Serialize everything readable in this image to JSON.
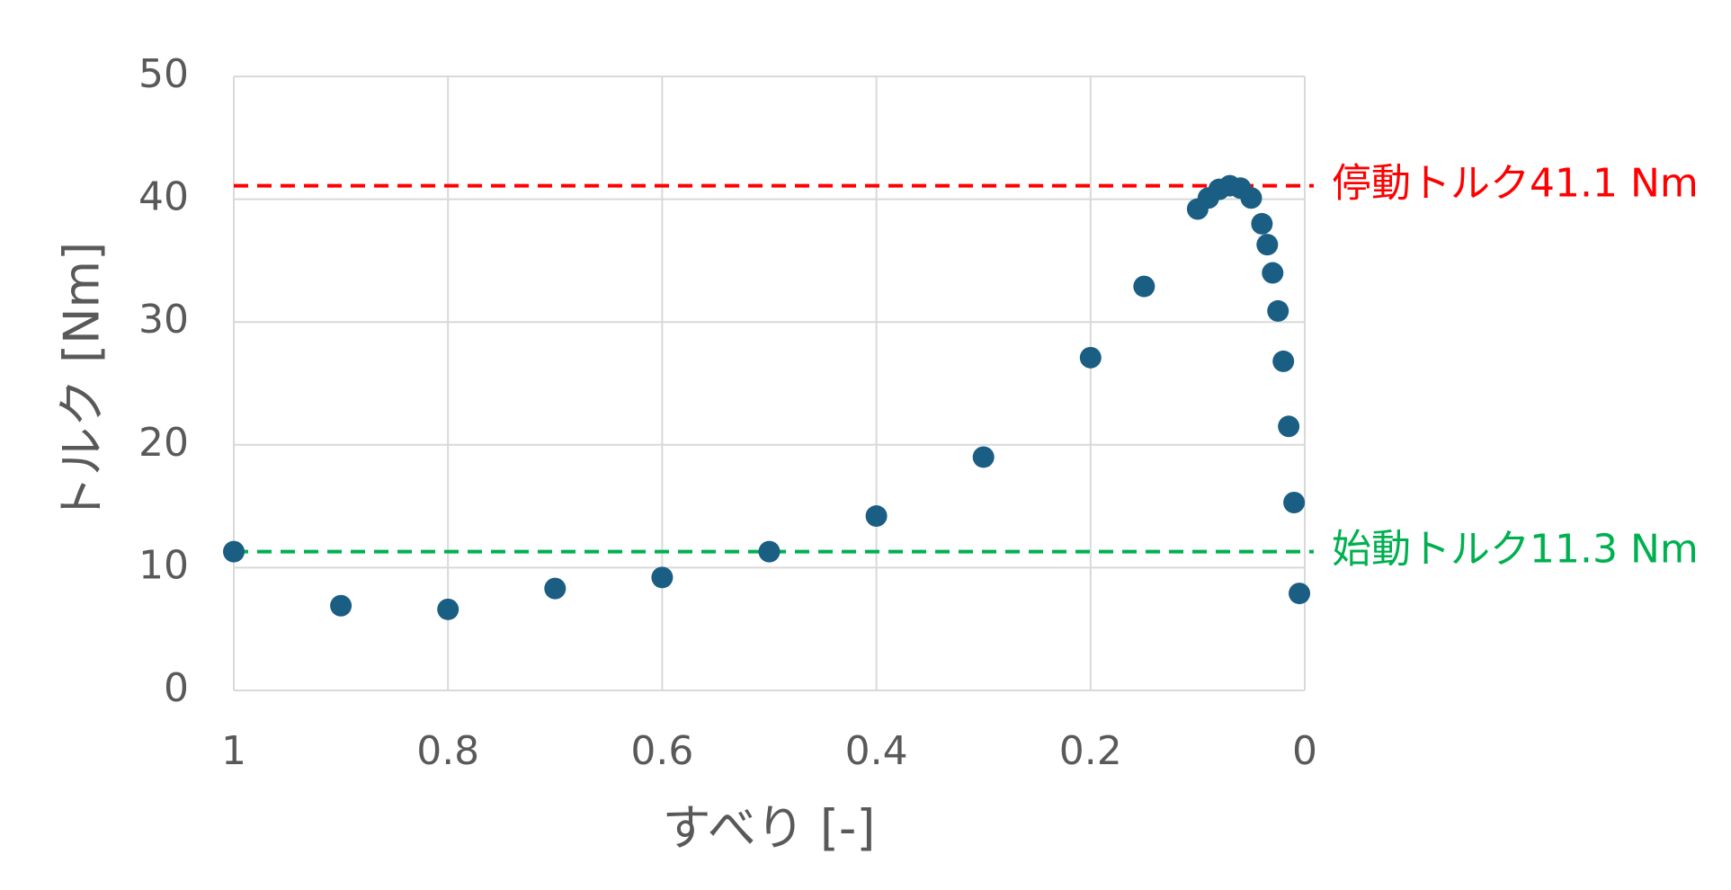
{
  "chart_data": {
    "type": "scatter",
    "x_label": "すべり [-]",
    "y_label": "トルク [Nm]",
    "x": [
      1,
      0.9,
      0.8,
      0.7,
      0.6,
      0.5,
      0.4,
      0.3,
      0.2,
      0.15,
      0.1,
      0.09,
      0.08,
      0.07,
      0.06,
      0.05,
      0.04,
      0.035,
      0.03,
      0.025,
      0.02,
      0.015,
      0.01,
      0.005
    ],
    "values": [
      11.3,
      6.9,
      6.6,
      8.3,
      9.2,
      11.3,
      14.2,
      19.0,
      27.1,
      32.9,
      39.2,
      40.1,
      40.8,
      41.1,
      40.9,
      40.1,
      38.0,
      36.3,
      34.0,
      30.9,
      26.8,
      21.5,
      15.3,
      7.9
    ],
    "color": "#1b5e84",
    "xlim": [
      1,
      0
    ],
    "xticks": [
      1,
      0.8,
      0.6,
      0.4,
      0.2,
      0
    ],
    "ylim": [
      0,
      50
    ],
    "yticks": [
      0,
      10,
      20,
      30,
      40,
      50
    ],
    "grid": true,
    "reference_lines": [
      {
        "value": 41.1,
        "label": "停動トルク41.1 Nm",
        "color": "#ff0000"
      },
      {
        "value": 11.3,
        "label": "始動トルク11.3 Nm",
        "color": "#00b050"
      }
    ]
  }
}
